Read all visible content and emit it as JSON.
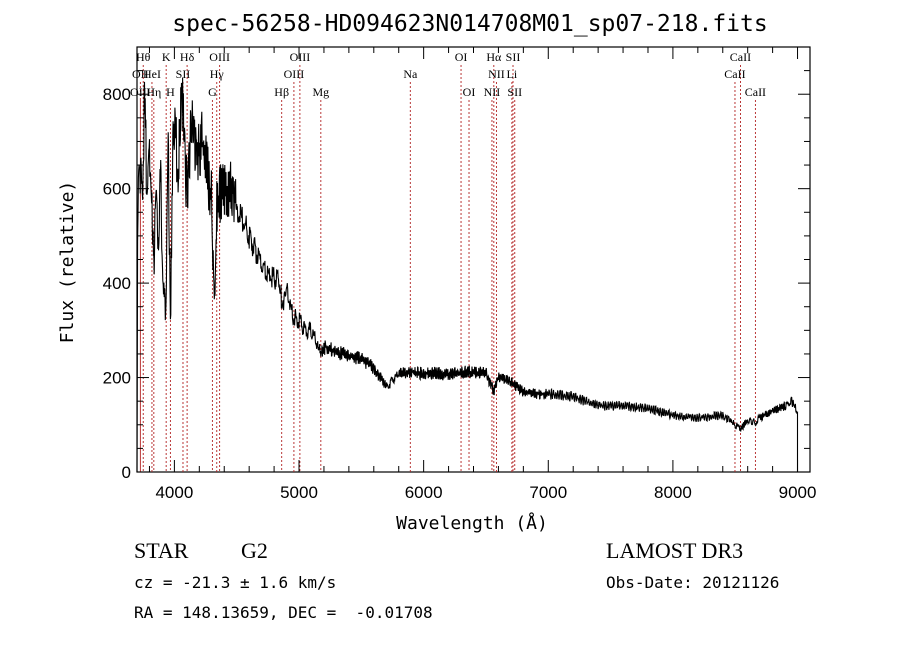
{
  "chart_data": {
    "type": "line",
    "title": "spec-56258-HD094623N014708M01_sp07-218.fits",
    "xlabel": "Wavelength (Å)",
    "ylabel": "Flux (relative)",
    "xlim": [
      3700,
      9100
    ],
    "ylim": [
      0,
      900
    ],
    "x_ticks": [
      4000,
      5000,
      6000,
      7000,
      8000,
      9000
    ],
    "x_tick_labels": [
      "4000",
      "5000",
      "6000",
      "7000",
      "8000",
      "9000"
    ],
    "y_ticks": [
      0,
      200,
      400,
      600,
      800
    ],
    "y_tick_labels": [
      "0",
      "200",
      "400",
      "600",
      "800"
    ],
    "grid": false,
    "series": [
      {
        "name": "spectrum",
        "x": [
          3700,
          3705,
          3720,
          3740,
          3760,
          3780,
          3800,
          3820,
          3835,
          3850,
          3870,
          3890,
          3910,
          3930,
          3950,
          3968,
          3990,
          4010,
          4030,
          4060,
          4090,
          4102,
          4120,
          4150,
          4180,
          4220,
          4260,
          4300,
          4320,
          4340,
          4380,
          4420,
          4460,
          4500,
          4550,
          4600,
          4650,
          4700,
          4750,
          4800,
          4850,
          4861,
          4900,
          4950,
          5000,
          5050,
          5100,
          5150,
          5175,
          5200,
          5300,
          5400,
          5500,
          5600,
          5700,
          5750,
          5800,
          5900,
          6000,
          6100,
          6200,
          6300,
          6400,
          6500,
          6563,
          6600,
          6700,
          6800,
          6900,
          7000,
          7200,
          7400,
          7600,
          7800,
          8000,
          8200,
          8400,
          8498,
          8542,
          8600,
          8662,
          8700,
          8800,
          8900,
          8950,
          8980,
          9000
        ],
        "y": [
          0,
          520,
          680,
          560,
          780,
          600,
          700,
          560,
          420,
          580,
          500,
          620,
          380,
          340,
          700,
          300,
          760,
          700,
          660,
          790,
          640,
          580,
          690,
          720,
          650,
          700,
          640,
          580,
          330,
          560,
          600,
          590,
          600,
          560,
          530,
          500,
          470,
          440,
          420,
          410,
          400,
          350,
          385,
          330,
          320,
          300,
          300,
          270,
          250,
          265,
          255,
          245,
          240,
          220,
          180,
          195,
          210,
          212,
          208,
          210,
          205,
          212,
          210,
          210,
          170,
          200,
          190,
          170,
          165,
          165,
          160,
          140,
          140,
          135,
          120,
          115,
          120,
          100,
          90,
          110,
          105,
          115,
          130,
          140,
          150,
          140,
          125
        ]
      }
    ],
    "line_markers": [
      {
        "label": "OII",
        "x": 3727,
        "row": 2
      },
      {
        "label": "OIII",
        "x": 3727,
        "row": 3
      },
      {
        "label": "Hθ",
        "x": 3750,
        "row": 1
      },
      {
        "label": "HeI",
        "x": 3820,
        "row": 2
      },
      {
        "label": "Hη",
        "x": 3835,
        "row": 3
      },
      {
        "label": "K",
        "x": 3934,
        "row": 1
      },
      {
        "label": "SII",
        "x": 4069,
        "row": 2
      },
      {
        "label": "H",
        "x": 3968,
        "row": 3
      },
      {
        "label": "Hδ",
        "x": 4102,
        "row": 1
      },
      {
        "label": "OIII",
        "x": 4363,
        "row": 1
      },
      {
        "label": "Hγ",
        "x": 4340,
        "row": 2
      },
      {
        "label": "G",
        "x": 4305,
        "row": 3
      },
      {
        "label": "Hβ",
        "x": 4861,
        "row": 3
      },
      {
        "label": "OIII",
        "x": 5007,
        "row": 1
      },
      {
        "label": "OIII",
        "x": 4959,
        "row": 2
      },
      {
        "label": "Mg",
        "x": 5175,
        "row": 3
      },
      {
        "label": "Na",
        "x": 5893,
        "row": 2
      },
      {
        "label": "OI",
        "x": 6300,
        "row": 1
      },
      {
        "label": "OI",
        "x": 6364,
        "row": 3
      },
      {
        "label": "Hα",
        "x": 6563,
        "row": 1
      },
      {
        "label": "SII",
        "x": 6717,
        "row": 1
      },
      {
        "label": "NII",
        "x": 6584,
        "row": 2
      },
      {
        "label": "Li",
        "x": 6708,
        "row": 2
      },
      {
        "label": "NII",
        "x": 6548,
        "row": 3
      },
      {
        "label": "SII",
        "x": 6731,
        "row": 3
      },
      {
        "label": "CaII",
        "x": 8542,
        "row": 1
      },
      {
        "label": "CaII",
        "x": 8498,
        "row": 2
      },
      {
        "label": "CaII",
        "x": 8662,
        "row": 3
      }
    ]
  },
  "info": {
    "object_class": "STAR",
    "subclass": "G2",
    "survey": "LAMOST DR3",
    "redshift": "cz = -21.3 ± 1.6 km/s",
    "obs_date": "Obs-Date: 20121126",
    "coords": "RA = 148.13659, DEC =  -0.01708"
  }
}
